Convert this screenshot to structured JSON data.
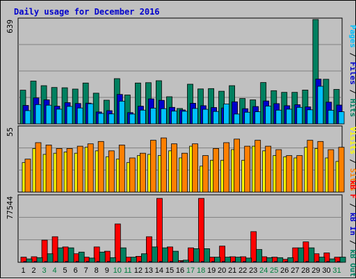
{
  "chart_data": {
    "type": "bar",
    "title": "Daily usage for December 2016",
    "categories": [
      "1",
      "2",
      "3",
      "4",
      "5",
      "6",
      "7",
      "8",
      "9",
      "10",
      "11",
      "12",
      "13",
      "14",
      "15",
      "16",
      "17",
      "18",
      "19",
      "20",
      "21",
      "22",
      "23",
      "24",
      "25",
      "26",
      "27",
      "28",
      "29",
      "30",
      "31"
    ],
    "weekend_days": [
      "3",
      "4",
      "10",
      "11",
      "17",
      "18",
      "24",
      "25",
      "31"
    ],
    "colors": {
      "title": "#0000cc",
      "hits": "#008060",
      "files": "#0000cc",
      "pages": "#00c0ff",
      "visits": "#ffff00",
      "sites": "#ff8000",
      "kb_f": "#ff0000",
      "kb_in": "#0000cc",
      "kb_out": "#008060",
      "weekday_label": "#000000",
      "weekend_label": "#008040"
    },
    "panels": [
      {
        "id": "hits-files-pages",
        "scale_max_label": "639",
        "ymax": 639,
        "right_label": [
          {
            "text": "Pages",
            "color": "#00c0ff"
          },
          {
            "text": " / ",
            "color": "#000000"
          },
          {
            "text": "Files",
            "color": "#0000cc"
          },
          {
            "text": " / ",
            "color": "#000000"
          },
          {
            "text": "Hits",
            "color": "#008060"
          }
        ],
        "series": [
          {
            "name": "Hits",
            "color": "#008060",
            "values": [
              206,
              262,
              234,
              223,
              221,
              213,
              250,
              188,
              145,
              277,
              177,
              250,
              252,
              264,
              166,
              94,
              243,
              214,
              216,
              200,
              234,
              155,
              147,
              253,
              203,
              193,
              193,
              207,
              639,
              273,
              211
            ]
          },
          {
            "name": "Files",
            "color": "#0000cc",
            "values": [
              113,
              159,
              147,
              108,
              130,
              125,
              127,
              73,
              81,
              180,
              69,
              108,
              153,
              144,
              101,
              85,
              126,
              111,
              100,
              97,
              135,
              93,
              106,
              140,
              124,
              111,
              117,
              104,
              274,
              133,
              115
            ]
          },
          {
            "name": "Pages",
            "color": "#00c0ff",
            "values": [
              81,
              118,
              114,
              90,
              107,
              97,
              123,
              64,
              61,
              139,
              60,
              84,
              96,
              93,
              78,
              77,
              94,
              89,
              76,
              122,
              60,
              71,
              74,
              109,
              84,
              90,
              101,
              86,
              230,
              83,
              74
            ]
          }
        ]
      },
      {
        "id": "visits-sites",
        "scale_max_label": "55",
        "ymax": 55,
        "right_label": [
          {
            "text": "Visits",
            "color": "#ffff00"
          },
          {
            "text": " / ",
            "color": "#000000"
          },
          {
            "text": "Sites",
            "color": "#ff8000"
          }
        ],
        "series": [
          {
            "name": "Visits",
            "color": "#ffff00",
            "values": [
              25,
              37,
              32,
              33,
              34,
              33,
              38,
              35,
              30,
              28,
              25,
              31,
              32,
              31,
              35,
              29,
              39,
              22,
              27,
              27,
              36,
              27,
              39,
              35,
              31,
              30,
              29,
              38,
              37,
              29,
              26
            ]
          },
          {
            "name": "Sites",
            "color": "#ff8000",
            "values": [
              28,
              42,
              40,
              37,
              37,
              39,
              41,
              43,
              35,
              40,
              29,
              33,
              44,
              46,
              41,
              33,
              41,
              31,
              37,
              42,
              45,
              39,
              44,
              39,
              36,
              31,
              31,
              44,
              43,
              36,
              38
            ]
          }
        ]
      },
      {
        "id": "kbf-kbin-kbout",
        "scale_max_label": "77544",
        "ymax": 77544,
        "right_label": [
          {
            "text": "kB F",
            "color": "#ff0000"
          },
          {
            "text": " / ",
            "color": "#000000"
          },
          {
            "text": "kB In",
            "color": "#0000cc"
          },
          {
            "text": " / ",
            "color": "#000000"
          },
          {
            "text": "kB Out",
            "color": "#008060"
          }
        ],
        "series": [
          {
            "name": "kB F",
            "color": "#ff0000",
            "values": [
              6000,
              6500,
              26000,
              30000,
              18000,
              10000,
              6000,
              18000,
              13000,
              45000,
              6000,
              7000,
              30000,
              75000,
              18000,
              2000,
              17000,
              75000,
              6000,
              19000,
              6500,
              6500,
              36000,
              6500,
              6000,
              3500,
              17000,
              24000,
              10000,
              11000,
              6000
            ]
          },
          {
            "name": "kB In",
            "color": "#0000cc",
            "values": [
              1000,
              1000,
              1000,
              1000,
              1000,
              1000,
              1000,
              1000,
              1000,
              1000,
              1000,
              1000,
              1000,
              1000,
              1000,
              1000,
              1000,
              1000,
              1000,
              1000,
              1000,
              1000,
              1000,
              1000,
              1000,
              1000,
              1000,
              1000,
              1000,
              1000,
              1000
            ]
          },
          {
            "name": "kB Out",
            "color": "#008060",
            "values": [
              4000,
              5500,
              10000,
              17000,
              17000,
              12000,
              5000,
              12000,
              5500,
              17000,
              6000,
              10000,
              18000,
              17000,
              13000,
              2500,
              16000,
              16000,
              6000,
              6000,
              6000,
              5000,
              15000,
              5500,
              5500,
              5500,
              17000,
              17000,
              6000,
              4000,
              6000
            ]
          }
        ]
      }
    ]
  }
}
